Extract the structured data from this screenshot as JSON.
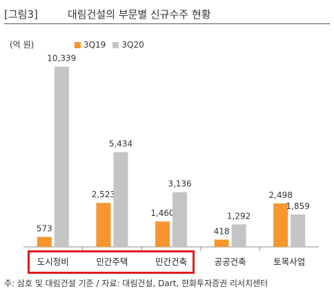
{
  "figure": {
    "label": "[그림3]",
    "title": "대림건설의 부문별 신규수주 현황",
    "unit": "(억 원)",
    "footnote": "주: 삼호 및 대림건설 기준 / 자료: 대림건설, Dart, 한화투자증권 리서치센터"
  },
  "colors": {
    "series_3Q19": "#f7962e",
    "series_3Q20": "#c4c4c4",
    "highlight": "#e0191e"
  },
  "chart_data": {
    "type": "bar",
    "categories": [
      "도시정비",
      "민간주택",
      "민간건축",
      "공공건축",
      "토목사업"
    ],
    "series": [
      {
        "name": "3Q19",
        "values": [
          573,
          2523,
          1460,
          418,
          2498
        ],
        "labels": [
          "573",
          "2,523",
          "1,460",
          "418",
          "2,498"
        ]
      },
      {
        "name": "3Q20",
        "values": [
          10339,
          5434,
          3136,
          1292,
          1859
        ],
        "labels": [
          "10,339",
          "5,434",
          "3,136",
          "1,292",
          "1,859"
        ]
      }
    ],
    "ylim": [
      0,
      11000
    ],
    "grid": false,
    "legend": "top-left",
    "highlighted_categories": [
      "도시정비",
      "민간주택",
      "민간건축"
    ]
  }
}
